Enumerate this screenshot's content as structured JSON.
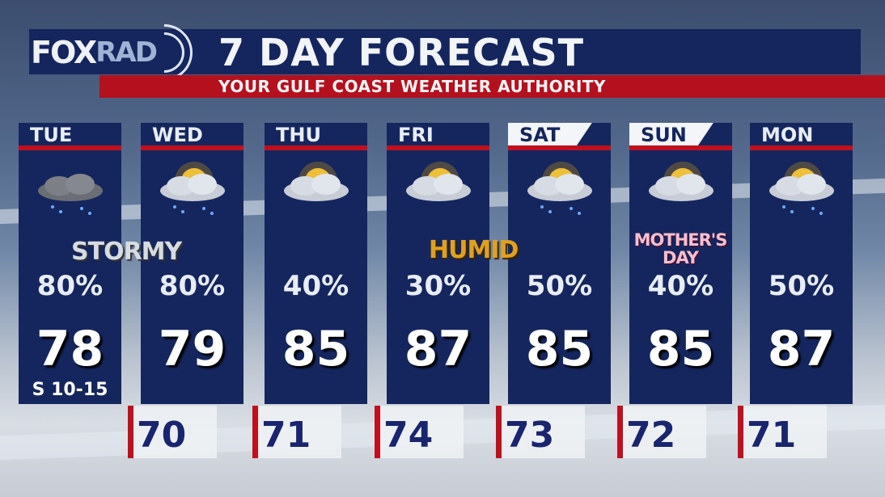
{
  "header": {
    "logo_text": "FOXRAD",
    "logo_main": "FOX",
    "logo_rad": "RAD",
    "title": "7 DAY FORECAST",
    "subtitle": "YOUR GULF COAST WEATHER AUTHORITY"
  },
  "colors": {
    "panel": "#15265e",
    "accent": "#c0101f"
  },
  "days": [
    {
      "day": "TUE",
      "icon": "thunderstorm-cloud-icon",
      "precip": "80%",
      "high": "78",
      "wind": "S 10-15",
      "low": "70",
      "tab": false
    },
    {
      "day": "WED",
      "icon": "sun-thunderstorm-icon",
      "precip": "80%",
      "high": "79",
      "low": "71",
      "tab": false
    },
    {
      "day": "THU",
      "icon": "partly-cloudy-icon",
      "precip": "40%",
      "high": "85",
      "low": "74",
      "tab": false
    },
    {
      "day": "FRI",
      "icon": "partly-cloudy-icon",
      "precip": "30%",
      "high": "87",
      "low": "73",
      "tab": false
    },
    {
      "day": "SAT",
      "icon": "sun-thunderstorm-icon",
      "precip": "50%",
      "high": "85",
      "low": "72",
      "tab": true
    },
    {
      "day": "SUN",
      "icon": "partly-cloudy-icon",
      "precip": "40%",
      "high": "85",
      "low": "71",
      "tab": true
    },
    {
      "day": "MON",
      "icon": "sun-thunderstorm-icon",
      "precip": "50%",
      "high": "87",
      "tab": false
    }
  ],
  "labels": {
    "stormy": "STORMY",
    "humid": "HUMID",
    "mothers_day": "MOTHER'S DAY"
  }
}
